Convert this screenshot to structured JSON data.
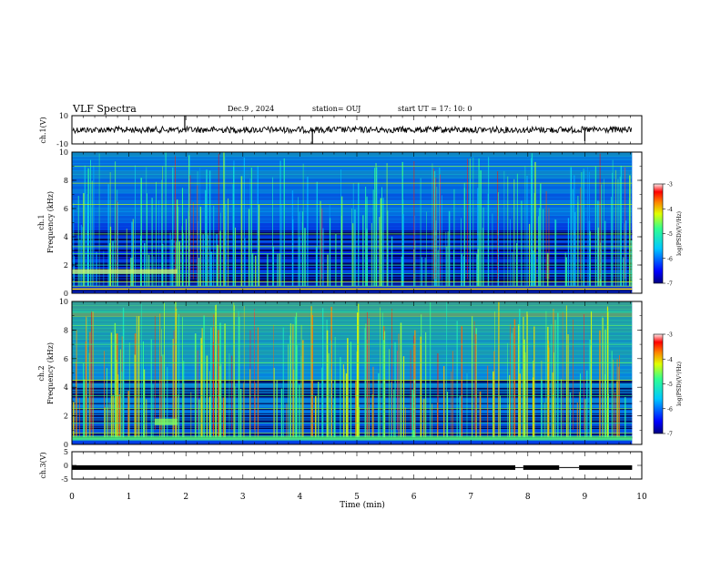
{
  "header": {
    "title": "VLF Spectra",
    "date": "Dec.9 , 2024",
    "station": "station= OUJ",
    "start": "start UT = 17: 10: 0"
  },
  "chart_data": [
    {
      "type": "line",
      "panel": "ch1-waveform",
      "ylabel": "ch.1(V)",
      "ylim": [
        -10,
        10
      ],
      "yticks": [
        "10",
        "-10"
      ],
      "x_range_min": [
        0,
        9.83
      ],
      "baseline": 0,
      "spikes": [
        {
          "x": 1.98,
          "y": 10
        },
        {
          "x": 4.22,
          "y": -10
        },
        {
          "x": 9.0,
          "y": -8
        }
      ]
    },
    {
      "type": "heatmap",
      "panel": "ch1-spectrogram",
      "ylabel": "ch.1 Frequency (kHz)",
      "ylim": [
        0,
        10
      ],
      "yticks": [
        "0",
        "2",
        "4",
        "6",
        "8",
        "10"
      ],
      "xlim": [
        0,
        10
      ],
      "colorbar": {
        "label": "log(PSD)(V²/Hz)",
        "ticks": [
          "-3",
          "-4",
          "-5",
          "-6",
          "-7"
        ],
        "range": [
          -7,
          -3
        ]
      }
    },
    {
      "type": "heatmap",
      "panel": "ch2-spectrogram",
      "ylabel": "ch.2 Frequency (kHz)",
      "ylim": [
        0,
        10
      ],
      "yticks": [
        "0",
        "2",
        "4",
        "6",
        "8",
        "10"
      ],
      "xlim": [
        0,
        10
      ],
      "colorbar": {
        "label": "log(PSD)(V²/Hz)",
        "ticks": [
          "-3",
          "-4",
          "-5",
          "-6",
          "-7"
        ],
        "range": [
          -7,
          -3
        ]
      }
    },
    {
      "type": "line",
      "panel": "ch3-waveform",
      "ylabel": "ch.3(V)",
      "ylim": [
        -5,
        5
      ],
      "yticks": [
        "5",
        "0",
        "-5"
      ],
      "level": -0.8,
      "gaps": [
        [
          7.78,
          7.92
        ],
        [
          8.55,
          8.9
        ]
      ]
    }
  ],
  "xaxis": {
    "label": "Time (min)",
    "ticks": [
      "0",
      "1",
      "2",
      "3",
      "4",
      "5",
      "6",
      "7",
      "8",
      "9",
      "10"
    ],
    "range": [
      0,
      10
    ]
  },
  "colors": {
    "background": "#000080",
    "low": "#0000c8",
    "mid": "#00c8ff",
    "high": "#ffe000",
    "peak": "#ff2000"
  }
}
